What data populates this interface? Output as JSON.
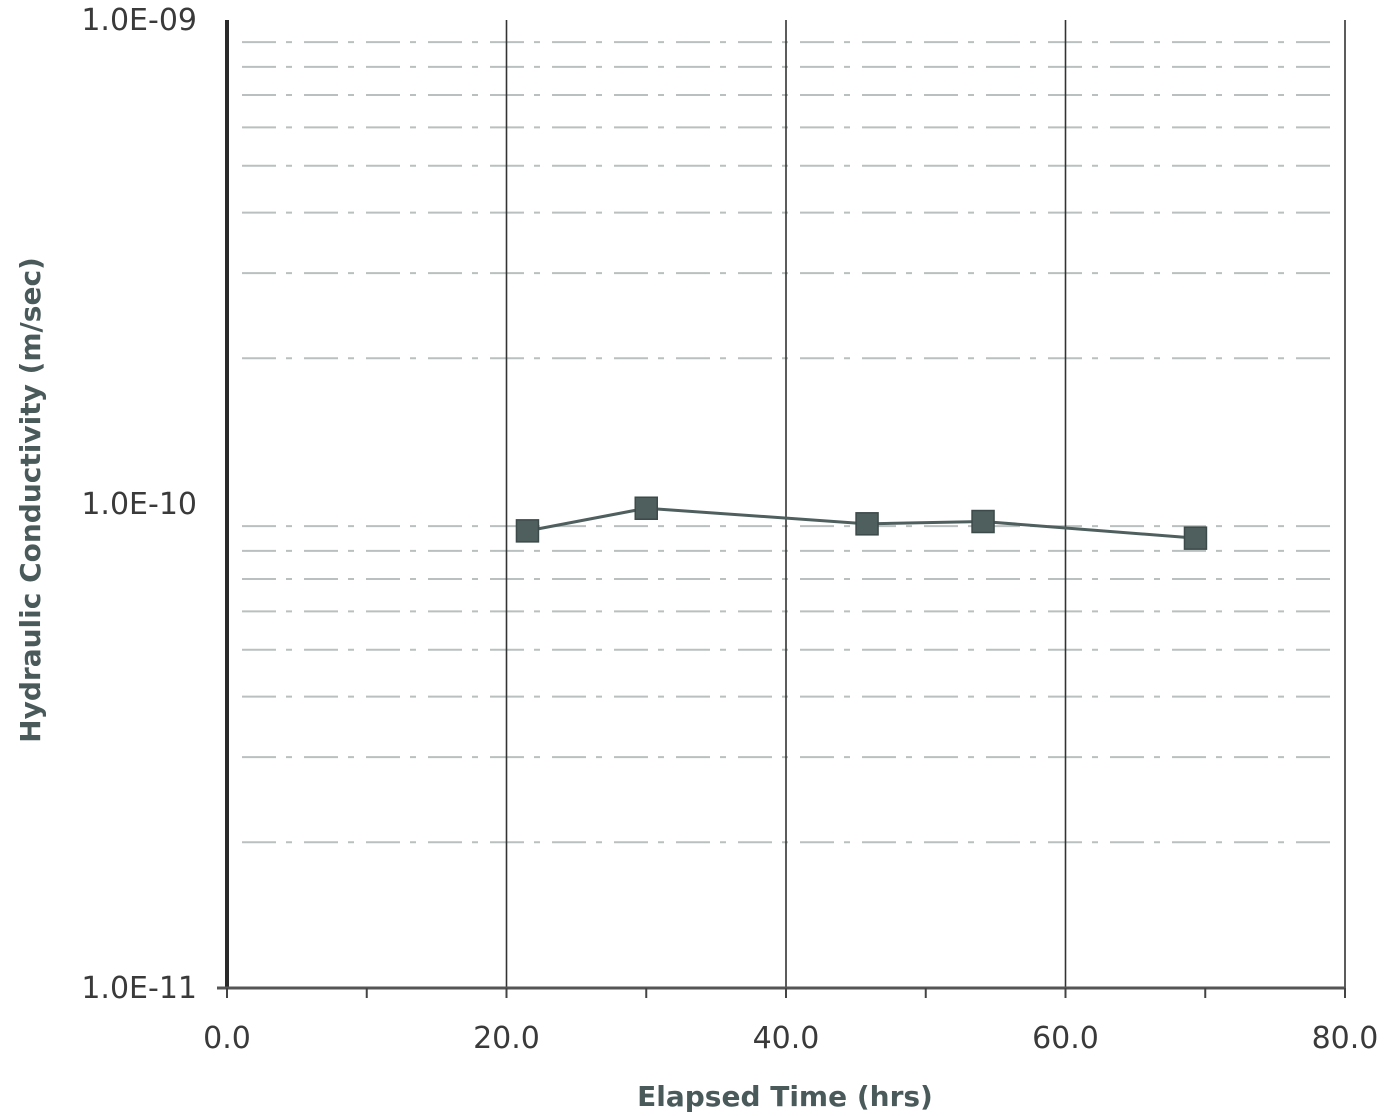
{
  "chart_data": {
    "type": "line",
    "title": "",
    "xlabel": "Elapsed Time (hrs)",
    "ylabel": "Hydraulic Conductivity (m/sec)",
    "xlim": [
      0,
      80
    ],
    "ylim": [
      1e-11,
      1e-09
    ],
    "yscale": "log",
    "x_ticks": [
      0,
      20,
      40,
      60,
      80
    ],
    "x_tick_labels": [
      "0.0",
      "20.0",
      "40.0",
      "60.0",
      "80.0"
    ],
    "y_ticks": [
      1e-11,
      1e-10,
      1e-09
    ],
    "y_tick_labels": [
      "1.0E-11",
      "1.0E-10",
      "1.0E-09"
    ],
    "grid": "vertical major lines, dotted horizontal minor lines",
    "series": [
      {
        "marker": "square",
        "color": "#4f5f5e",
        "x": [
          21.5,
          30.0,
          45.8,
          54.1,
          69.3
        ],
        "y": [
          8.8e-11,
          9.8e-11,
          9.1e-11,
          9.2e-11,
          8.5e-11
        ]
      }
    ]
  }
}
